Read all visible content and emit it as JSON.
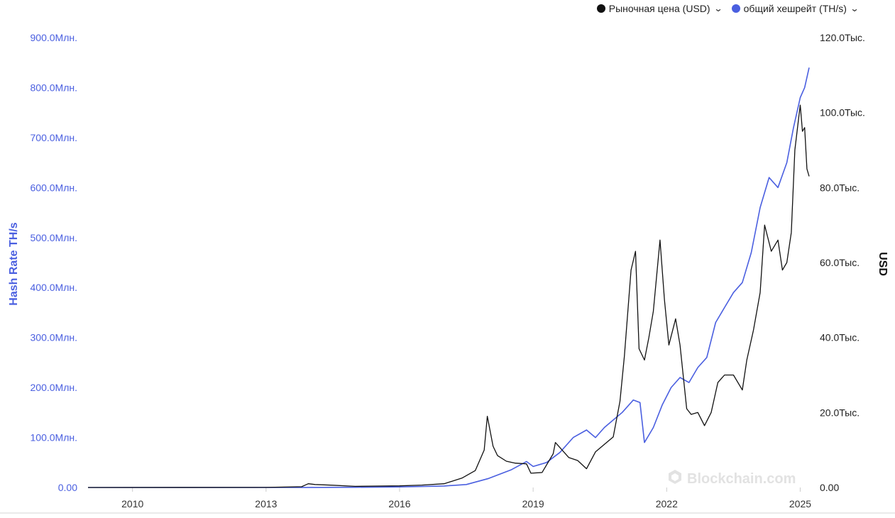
{
  "legend": {
    "items": [
      {
        "label": "Рыночная цена (USD)",
        "color": "#111111"
      },
      {
        "label": "общий хешрейт (TH/s)",
        "color": "#4a5fe0"
      }
    ]
  },
  "watermark": "Blockchain.com",
  "chart_data": {
    "type": "line",
    "xlim": [
      2009.0,
      2025.2
    ],
    "x_ticks": [
      {
        "value": 2010,
        "label": "2010"
      },
      {
        "value": 2013,
        "label": "2013"
      },
      {
        "value": 2016,
        "label": "2016"
      },
      {
        "value": 2019,
        "label": "2019"
      },
      {
        "value": 2022,
        "label": "2022"
      },
      {
        "value": 2025,
        "label": "2025"
      }
    ],
    "y_left": {
      "label": "Hash Rate TH/s",
      "range": [
        0,
        900000000
      ],
      "ticks": [
        {
          "value": 0,
          "label": "0.00"
        },
        {
          "value": 100000000,
          "label": "100.0Млн."
        },
        {
          "value": 200000000,
          "label": "200.0Млн."
        },
        {
          "value": 300000000,
          "label": "300.0Млн."
        },
        {
          "value": 400000000,
          "label": "400.0Млн."
        },
        {
          "value": 500000000,
          "label": "500.0Млн."
        },
        {
          "value": 600000000,
          "label": "600.0Млн."
        },
        {
          "value": 700000000,
          "label": "700.0Млн."
        },
        {
          "value": 800000000,
          "label": "800.0Млн."
        },
        {
          "value": 900000000,
          "label": "900.0Млн."
        }
      ]
    },
    "y_right": {
      "label": "USD",
      "range": [
        0,
        120000
      ],
      "ticks": [
        {
          "value": 0,
          "label": "0.00"
        },
        {
          "value": 20000,
          "label": "20.0Тыс."
        },
        {
          "value": 40000,
          "label": "40.0Тыс."
        },
        {
          "value": 60000,
          "label": "60.0Тыс."
        },
        {
          "value": 80000,
          "label": "80.0Тыс."
        },
        {
          "value": 100000,
          "label": "100.0Тыс."
        },
        {
          "value": 120000,
          "label": "120.0Тыс."
        }
      ]
    },
    "series": [
      {
        "name": "Рыночная цена (USD)",
        "axis": "right",
        "color": "#111111",
        "points": [
          [
            2009.0,
            0
          ],
          [
            2013.0,
            13
          ],
          [
            2013.8,
            200
          ],
          [
            2013.95,
            1000
          ],
          [
            2014.1,
            800
          ],
          [
            2014.5,
            600
          ],
          [
            2015.0,
            300
          ],
          [
            2016.0,
            430
          ],
          [
            2016.5,
            650
          ],
          [
            2017.0,
            1000
          ],
          [
            2017.4,
            2500
          ],
          [
            2017.7,
            4500
          ],
          [
            2017.9,
            10000
          ],
          [
            2017.97,
            19000
          ],
          [
            2018.1,
            11000
          ],
          [
            2018.2,
            8500
          ],
          [
            2018.4,
            7000
          ],
          [
            2018.6,
            6500
          ],
          [
            2018.85,
            6300
          ],
          [
            2018.95,
            3800
          ],
          [
            2019.2,
            4000
          ],
          [
            2019.45,
            9000
          ],
          [
            2019.5,
            12000
          ],
          [
            2019.8,
            8000
          ],
          [
            2020.0,
            7200
          ],
          [
            2020.2,
            5000
          ],
          [
            2020.4,
            9500
          ],
          [
            2020.6,
            11500
          ],
          [
            2020.8,
            13500
          ],
          [
            2020.95,
            23000
          ],
          [
            2021.05,
            35000
          ],
          [
            2021.2,
            58000
          ],
          [
            2021.3,
            63000
          ],
          [
            2021.38,
            37000
          ],
          [
            2021.5,
            34000
          ],
          [
            2021.6,
            40000
          ],
          [
            2021.7,
            47000
          ],
          [
            2021.85,
            66000
          ],
          [
            2021.95,
            50000
          ],
          [
            2022.05,
            38000
          ],
          [
            2022.2,
            45000
          ],
          [
            2022.3,
            38000
          ],
          [
            2022.45,
            21000
          ],
          [
            2022.55,
            19500
          ],
          [
            2022.7,
            20000
          ],
          [
            2022.85,
            16500
          ],
          [
            2023.0,
            20000
          ],
          [
            2023.15,
            28000
          ],
          [
            2023.3,
            30000
          ],
          [
            2023.5,
            30000
          ],
          [
            2023.7,
            26000
          ],
          [
            2023.8,
            34000
          ],
          [
            2023.95,
            42000
          ],
          [
            2024.1,
            52000
          ],
          [
            2024.2,
            70000
          ],
          [
            2024.35,
            63000
          ],
          [
            2024.5,
            66000
          ],
          [
            2024.6,
            58000
          ],
          [
            2024.7,
            60000
          ],
          [
            2024.8,
            68000
          ],
          [
            2024.88,
            90000
          ],
          [
            2024.95,
            97000
          ],
          [
            2025.0,
            102000
          ],
          [
            2025.05,
            95000
          ],
          [
            2025.1,
            96000
          ],
          [
            2025.15,
            85000
          ],
          [
            2025.2,
            83000
          ]
        ]
      },
      {
        "name": "общий хешрейт (TH/s)",
        "axis": "left",
        "color": "#4a5fe0",
        "points": [
          [
            2009.0,
            0
          ],
          [
            2014.0,
            150000
          ],
          [
            2015.0,
            400000
          ],
          [
            2016.0,
            1200000
          ],
          [
            2016.5,
            2000000
          ],
          [
            2017.0,
            3000000
          ],
          [
            2017.5,
            6000000
          ],
          [
            2018.0,
            18000000
          ],
          [
            2018.5,
            35000000
          ],
          [
            2018.85,
            52000000
          ],
          [
            2019.0,
            42000000
          ],
          [
            2019.3,
            50000000
          ],
          [
            2019.6,
            70000000
          ],
          [
            2019.9,
            100000000
          ],
          [
            2020.2,
            115000000
          ],
          [
            2020.4,
            100000000
          ],
          [
            2020.6,
            120000000
          ],
          [
            2020.8,
            135000000
          ],
          [
            2021.0,
            150000000
          ],
          [
            2021.25,
            175000000
          ],
          [
            2021.4,
            170000000
          ],
          [
            2021.5,
            90000000
          ],
          [
            2021.7,
            120000000
          ],
          [
            2021.9,
            165000000
          ],
          [
            2022.1,
            200000000
          ],
          [
            2022.3,
            220000000
          ],
          [
            2022.5,
            210000000
          ],
          [
            2022.7,
            240000000
          ],
          [
            2022.9,
            260000000
          ],
          [
            2023.1,
            330000000
          ],
          [
            2023.3,
            360000000
          ],
          [
            2023.5,
            390000000
          ],
          [
            2023.7,
            410000000
          ],
          [
            2023.9,
            470000000
          ],
          [
            2024.1,
            560000000
          ],
          [
            2024.3,
            620000000
          ],
          [
            2024.5,
            600000000
          ],
          [
            2024.7,
            650000000
          ],
          [
            2024.85,
            720000000
          ],
          [
            2025.0,
            780000000
          ],
          [
            2025.1,
            800000000
          ],
          [
            2025.2,
            840000000
          ]
        ]
      }
    ]
  }
}
